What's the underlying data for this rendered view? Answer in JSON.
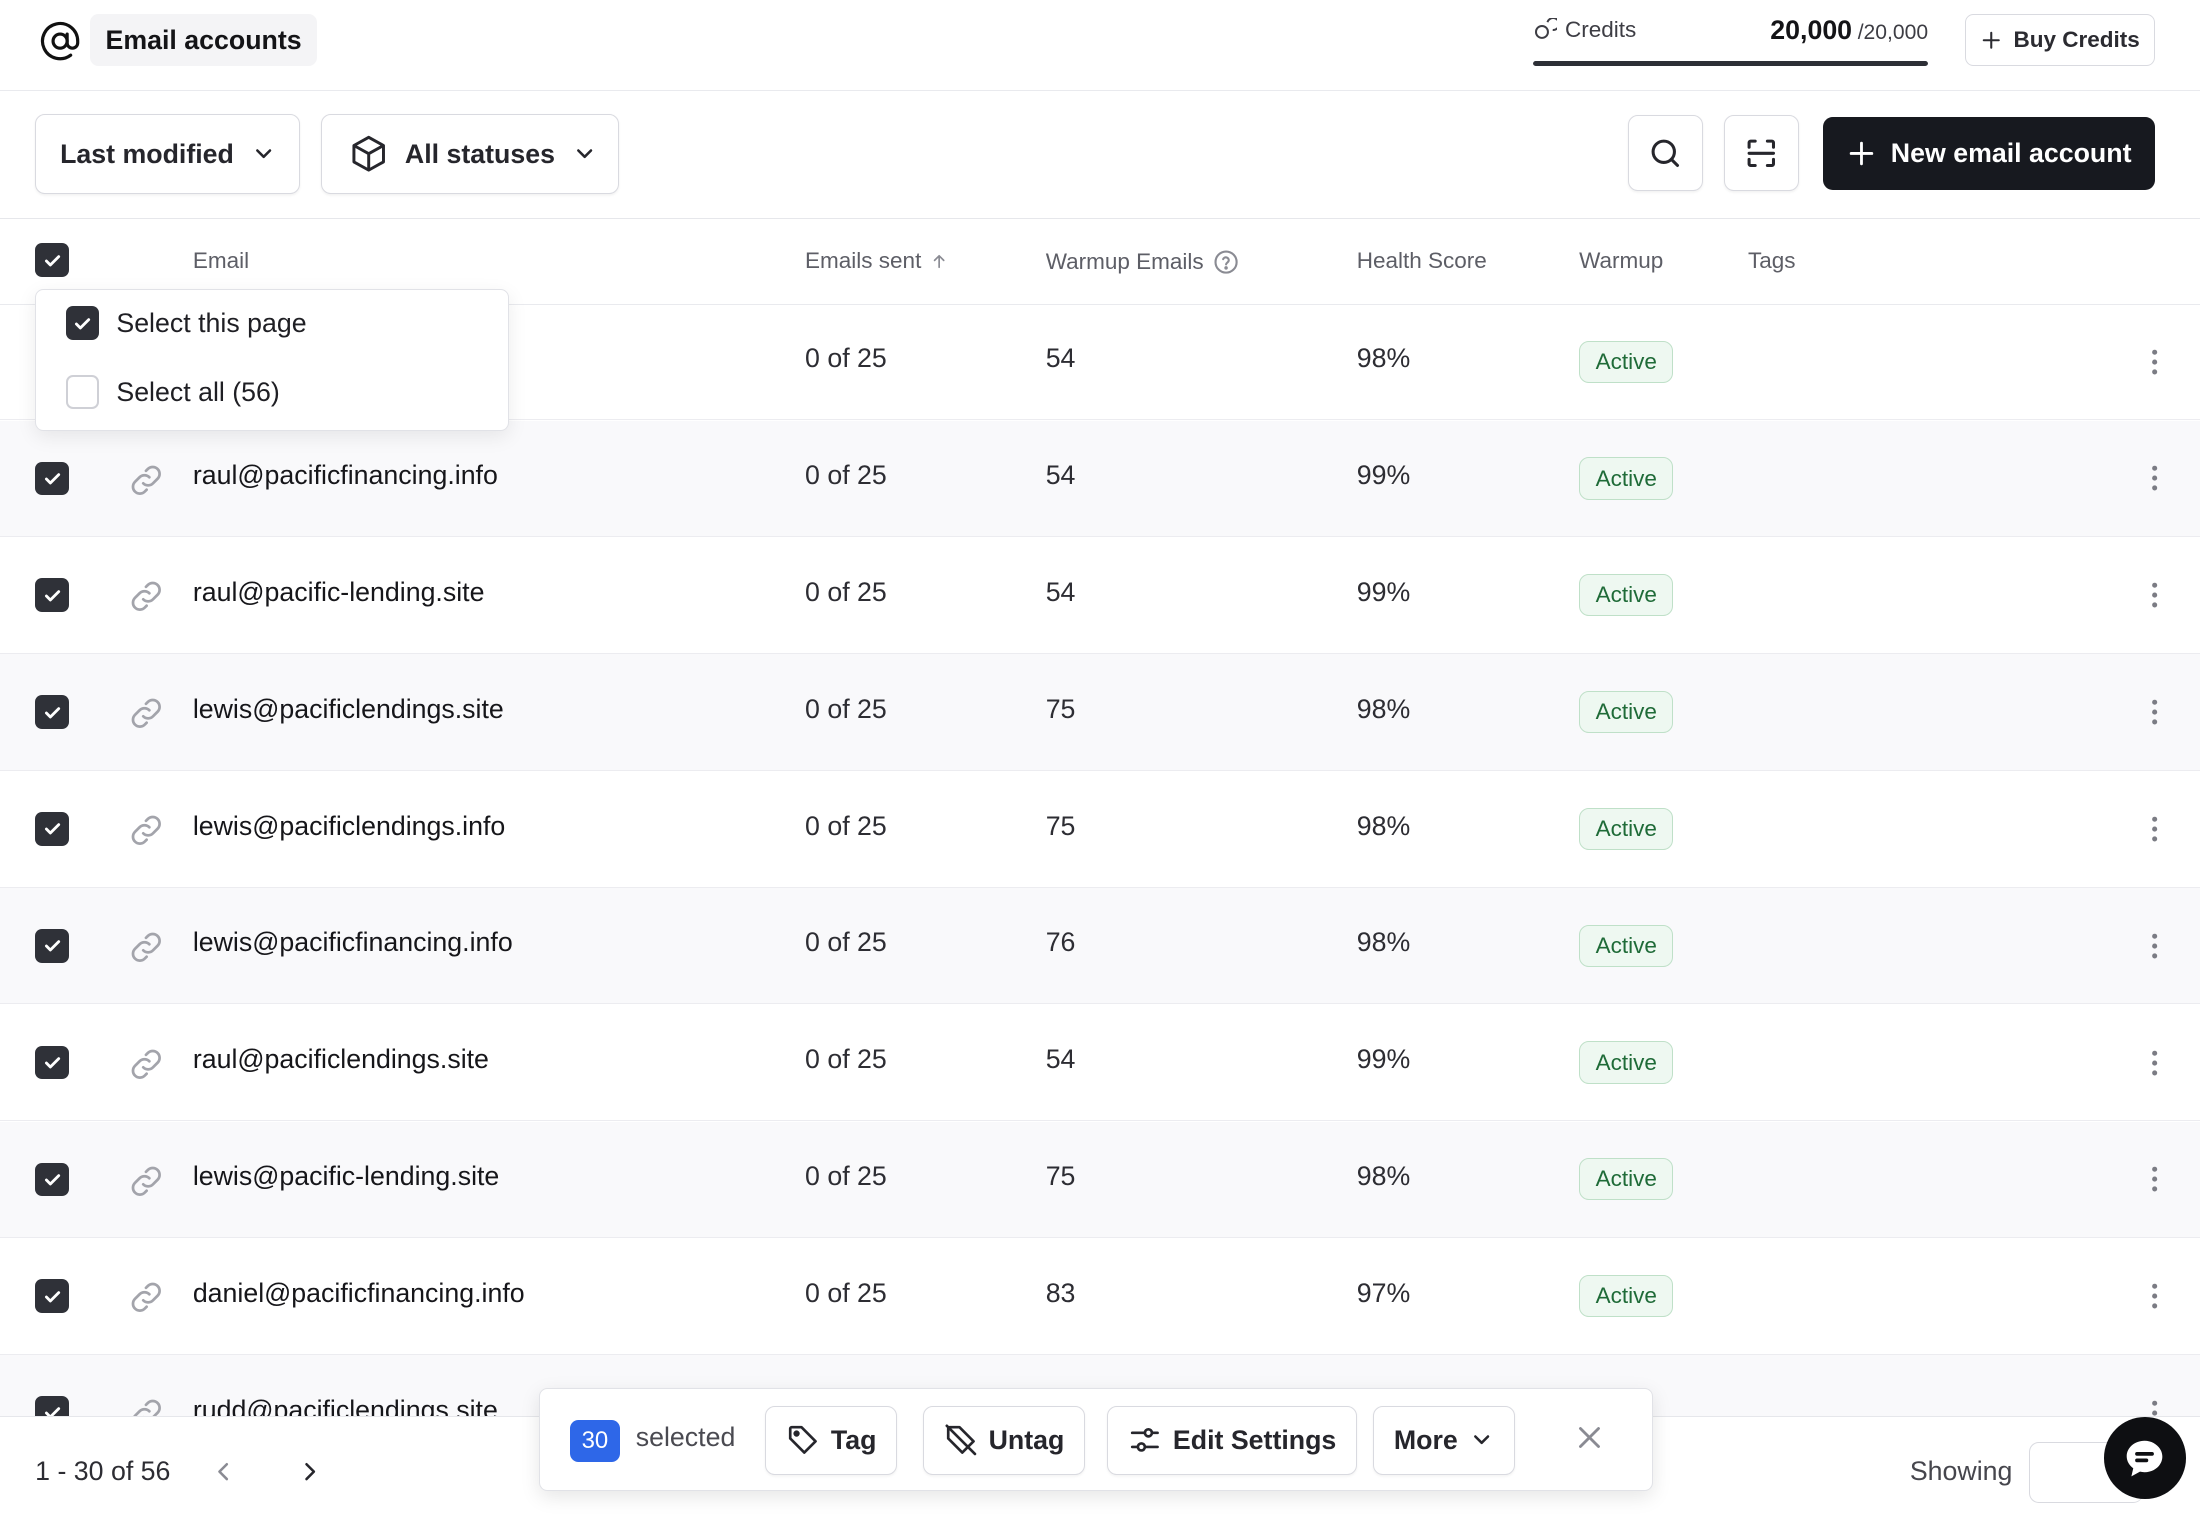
{
  "header": {
    "title": "Email accounts",
    "credits_label": "Credits",
    "credits_used": "20,000",
    "credits_total": "/20,000",
    "credits_fraction": 1.0,
    "buy_label": "Buy Credits"
  },
  "toolbar": {
    "sort_label": "Last modified",
    "status_label": "All statuses",
    "new_account_label": "New email account"
  },
  "table": {
    "columns": {
      "email": "Email",
      "emails_sent": "Emails sent",
      "warmup_emails": "Warmup Emails",
      "health_score": "Health Score",
      "warmup": "Warmup",
      "tags": "Tags"
    },
    "rows": [
      {
        "email": "",
        "sent": "0 of 25",
        "warmup_emails": "54",
        "health": "98%",
        "status": "Active"
      },
      {
        "email": "raul@pacificfinancing.info",
        "sent": "0 of 25",
        "warmup_emails": "54",
        "health": "99%",
        "status": "Active"
      },
      {
        "email": "raul@pacific-lending.site",
        "sent": "0 of 25",
        "warmup_emails": "54",
        "health": "99%",
        "status": "Active"
      },
      {
        "email": "lewis@pacificlendings.site",
        "sent": "0 of 25",
        "warmup_emails": "75",
        "health": "98%",
        "status": "Active"
      },
      {
        "email": "lewis@pacificlendings.info",
        "sent": "0 of 25",
        "warmup_emails": "75",
        "health": "98%",
        "status": "Active"
      },
      {
        "email": "lewis@pacificfinancing.info",
        "sent": "0 of 25",
        "warmup_emails": "76",
        "health": "98%",
        "status": "Active"
      },
      {
        "email": "raul@pacificlendings.site",
        "sent": "0 of 25",
        "warmup_emails": "54",
        "health": "99%",
        "status": "Active"
      },
      {
        "email": "lewis@pacific-lending.site",
        "sent": "0 of 25",
        "warmup_emails": "75",
        "health": "98%",
        "status": "Active"
      },
      {
        "email": "daniel@pacificfinancing.info",
        "sent": "0 of 25",
        "warmup_emails": "83",
        "health": "97%",
        "status": "Active"
      },
      {
        "email": "rudd@pacificlendings.site",
        "sent": "",
        "warmup_emails": "",
        "health": "",
        "status": ""
      }
    ]
  },
  "select_menu": {
    "select_page": "Select this page",
    "select_all": "Select all (56)"
  },
  "bulk": {
    "count": "30",
    "selected_label": "selected",
    "tag": "Tag",
    "untag": "Untag",
    "edit_settings": "Edit Settings",
    "more": "More"
  },
  "footer": {
    "range": "1 - 30 of 56",
    "showing_label": "Showing"
  },
  "colors": {
    "primary_button": "#17191f",
    "badge_green_bg": "#eef8f1",
    "badge_green_text": "#1f6b38",
    "selection_blue": "#2e67e8"
  }
}
